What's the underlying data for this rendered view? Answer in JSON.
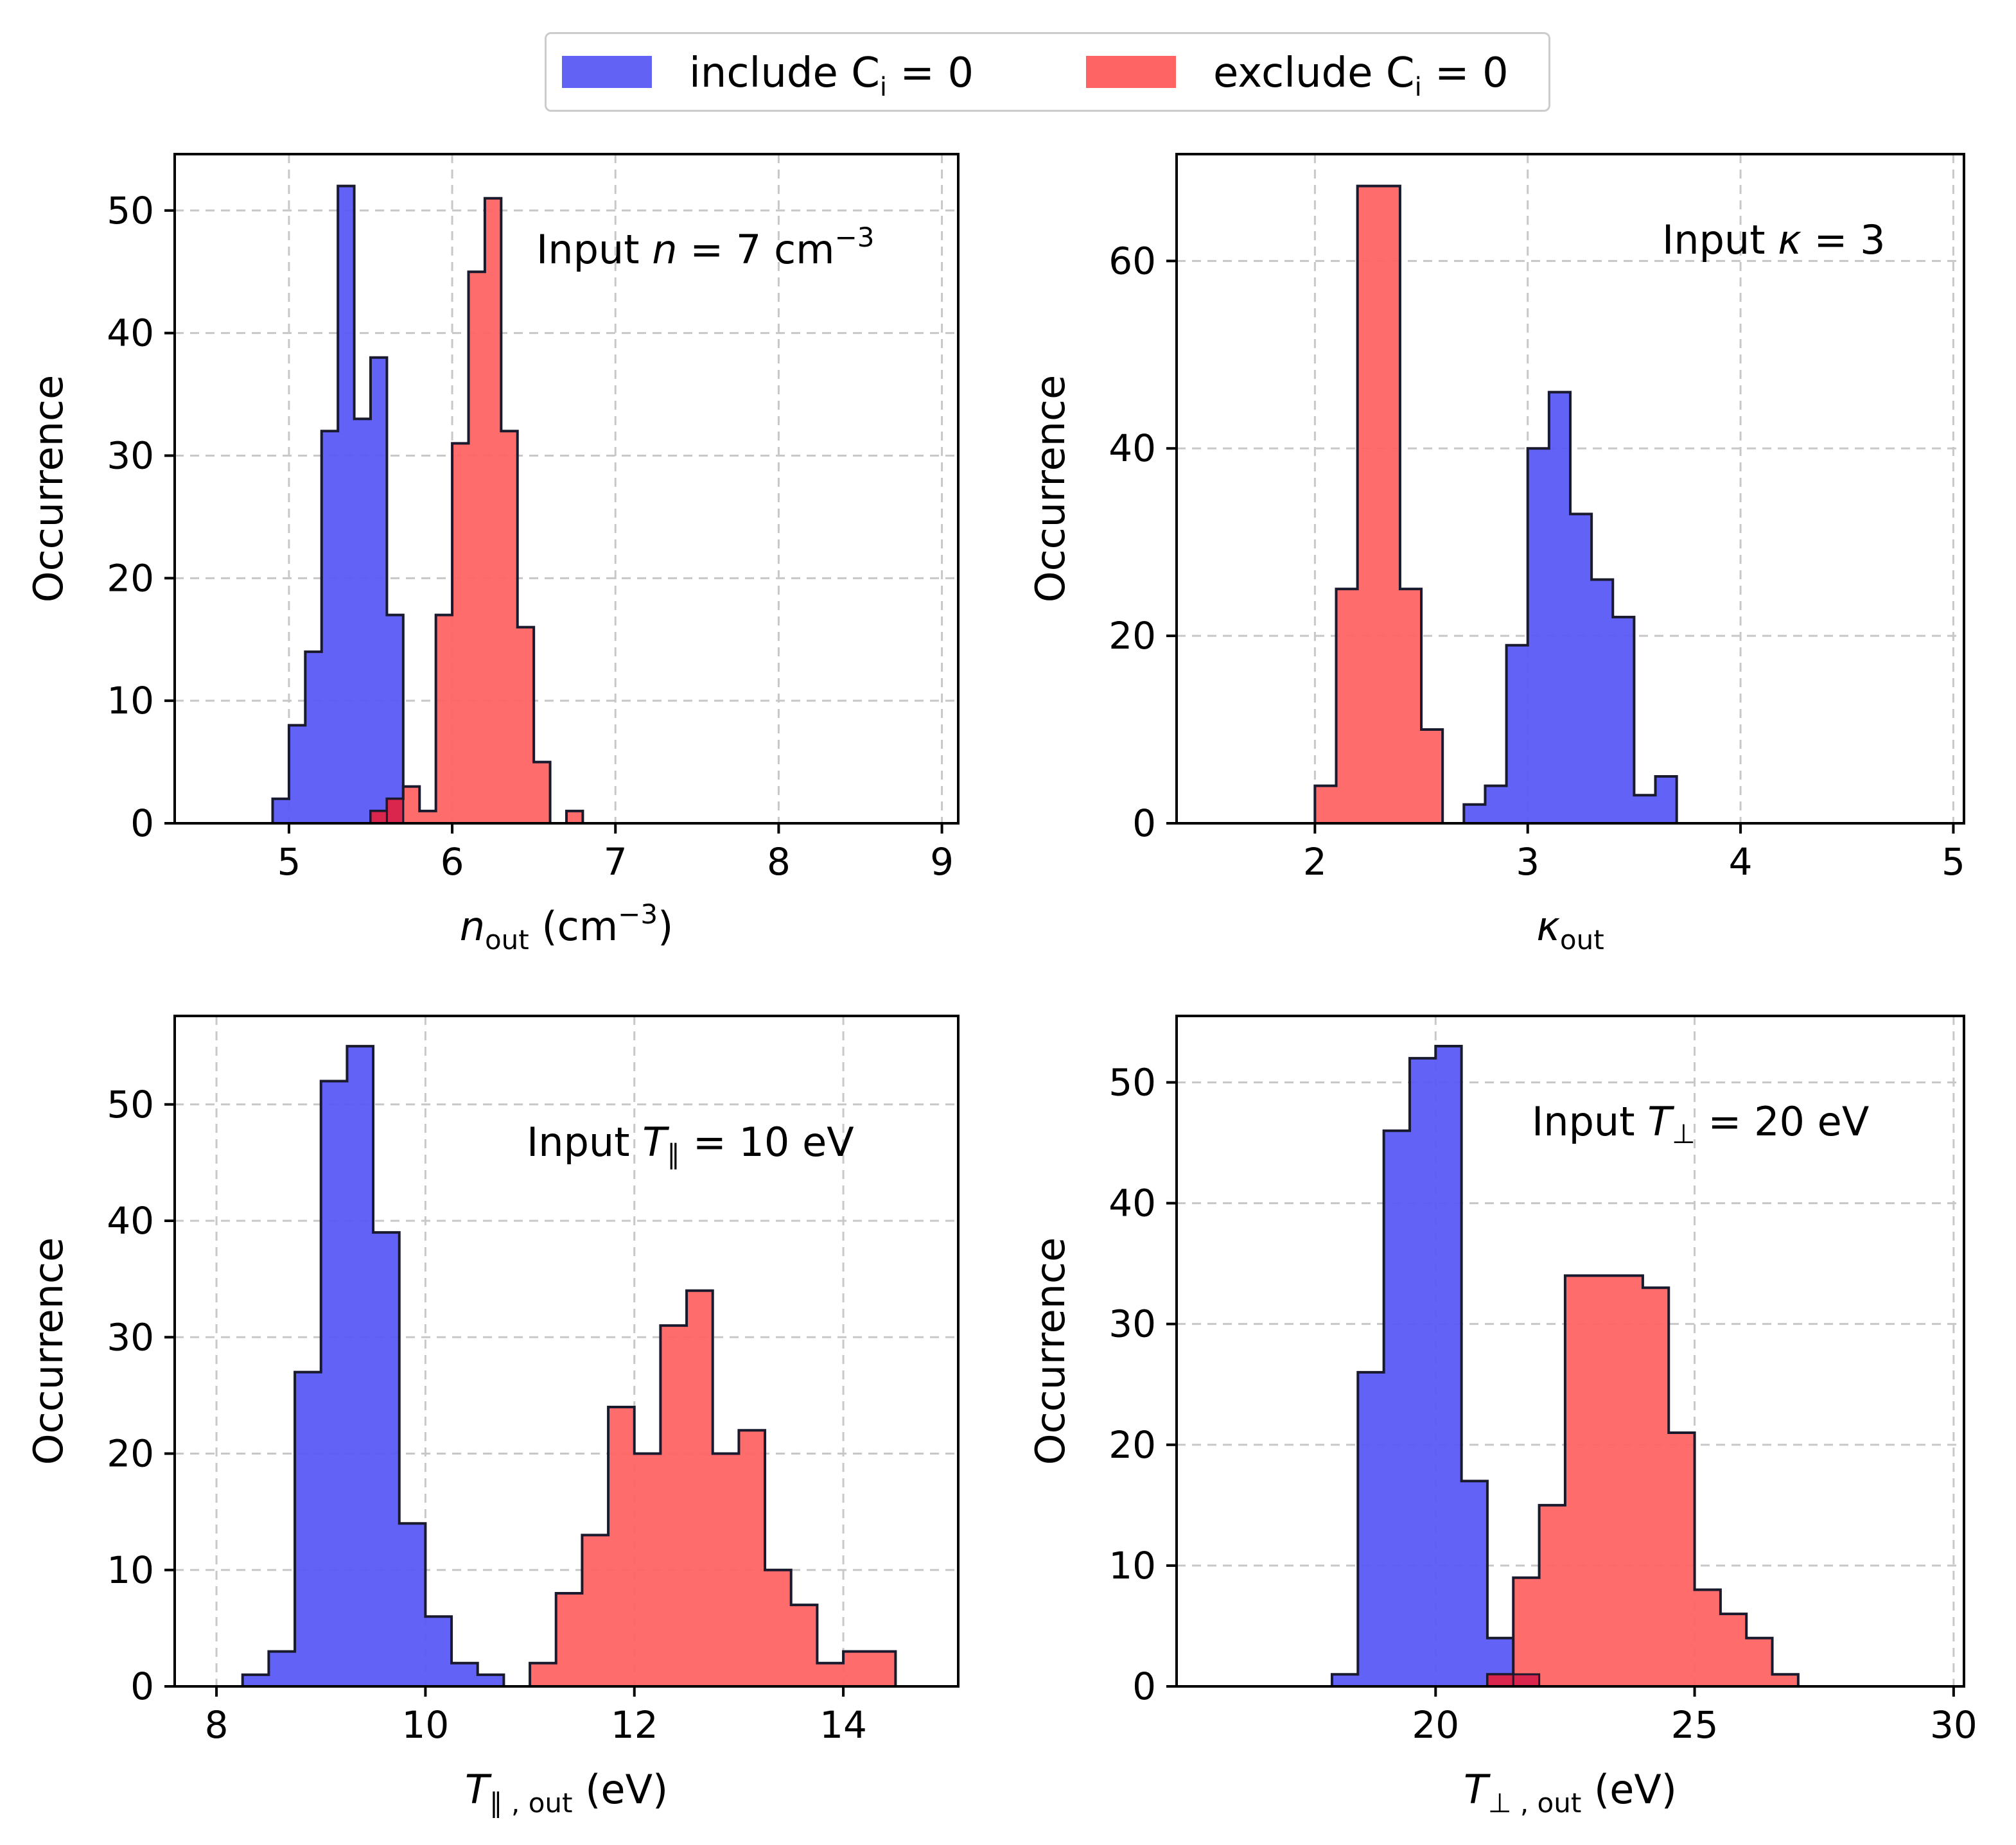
{
  "legend": {
    "include_label": "include C",
    "include_sub": "i",
    "include_tail": " = 0",
    "exclude_label": "exclude C",
    "exclude_sub": "i",
    "exclude_tail": " = 0",
    "include_color": "#5a5af6",
    "exclude_color": "#ff6464",
    "overlap_color": "#d61f4a"
  },
  "chart_data": [
    {
      "type": "histogram",
      "ylabel": "Occurrence",
      "xlabel": {
        "base": "n",
        "sub": "out",
        "unit": " (cm",
        "sup": "−3",
        "close": ")"
      },
      "annotation": {
        "prefix": "Input ",
        "var": "n",
        "mid": " = 7 cm",
        "sup": "−3",
        "suffix": ""
      },
      "xlim": [
        4.3,
        9.1
      ],
      "ylim": [
        0,
        54.6
      ],
      "xticks": [
        5,
        6,
        7,
        8,
        9
      ],
      "yticks": [
        0,
        10,
        20,
        30,
        40,
        50
      ],
      "series": [
        {
          "name": "include C_i = 0",
          "bin_edges": [
            4.9,
            5.0,
            5.1,
            5.2,
            5.3,
            5.4,
            5.5,
            5.6,
            5.7
          ],
          "counts": [
            2,
            8,
            14,
            32,
            52,
            33,
            38,
            17
          ]
        },
        {
          "name": "exclude C_i = 0",
          "bin_edges": [
            5.5,
            5.6,
            5.7,
            5.8,
            5.9,
            6.0,
            6.1,
            6.2,
            6.3,
            6.4,
            6.5,
            6.6,
            6.7,
            6.8
          ],
          "counts": [
            1,
            2,
            3,
            1,
            17,
            31,
            45,
            51,
            32,
            16,
            5,
            0,
            1
          ]
        }
      ]
    },
    {
      "type": "histogram",
      "ylabel": "Occurrence",
      "xlabel": {
        "base": "κ",
        "sub": "out",
        "unit": "",
        "sup": "",
        "close": ""
      },
      "annotation": {
        "prefix": "Input ",
        "var": "κ",
        "mid": " = 3",
        "sup": "",
        "suffix": ""
      },
      "xlim": [
        1.35,
        5.05
      ],
      "ylim": [
        0,
        71.4
      ],
      "xticks": [
        2,
        3,
        4,
        5
      ],
      "yticks": [
        0,
        20,
        40,
        60
      ],
      "series": [
        {
          "name": "include C_i = 0",
          "bin_edges": [
            2.7,
            2.8,
            2.9,
            3.0,
            3.1,
            3.2,
            3.3,
            3.4,
            3.5,
            3.6,
            3.7
          ],
          "counts": [
            2,
            4,
            19,
            40,
            46,
            33,
            26,
            22,
            3,
            5
          ]
        },
        {
          "name": "exclude C_i = 0",
          "bin_edges": [
            2.0,
            2.1,
            2.2,
            2.3,
            2.4,
            2.5,
            2.6
          ],
          "counts": [
            4,
            25,
            68,
            68,
            25,
            10
          ]
        }
      ]
    },
    {
      "type": "histogram",
      "ylabel": "Occurrence",
      "xlabel": {
        "base": "T",
        "sub": "∥ , out",
        "unit": " (eV)",
        "sup": "",
        "close": ""
      },
      "annotation": {
        "prefix": "Input ",
        "var": "T",
        "varsub": "∥",
        "mid": " = 10 eV",
        "sup": "",
        "suffix": ""
      },
      "xlim": [
        7.6,
        15.1
      ],
      "ylim": [
        0,
        57.6
      ],
      "xticks": [
        8,
        10,
        12,
        14
      ],
      "yticks": [
        0,
        10,
        20,
        30,
        40,
        50
      ],
      "series": [
        {
          "name": "include C_i = 0",
          "bin_edges": [
            8.25,
            8.5,
            8.75,
            9.0,
            9.25,
            9.5,
            9.75,
            10.0,
            10.25,
            10.5,
            10.75
          ],
          "counts": [
            1,
            3,
            27,
            52,
            55,
            39,
            14,
            6,
            2,
            1
          ]
        },
        {
          "name": "exclude C_i = 0",
          "bin_edges": [
            11.0,
            11.25,
            11.5,
            11.75,
            12.0,
            12.25,
            12.5,
            12.75,
            13.0,
            13.25,
            13.5,
            13.75,
            14.0,
            14.25,
            14.5
          ],
          "counts": [
            2,
            8,
            13,
            24,
            20,
            31,
            34,
            20,
            22,
            10,
            7,
            2,
            3,
            3
          ]
        }
      ]
    },
    {
      "type": "histogram",
      "ylabel": "Occurrence",
      "xlabel": {
        "base": "T",
        "sub": "⊥ , out",
        "unit": " (eV)",
        "sup": "",
        "close": ""
      },
      "annotation": {
        "prefix": "Input ",
        "var": "T",
        "varsub": "⊥",
        "mid": " = 20 eV",
        "sup": "",
        "suffix": ""
      },
      "xlim": [
        15.0,
        30.2
      ],
      "ylim": [
        0,
        55.5
      ],
      "xticks": [
        20,
        25,
        30
      ],
      "yticks": [
        0,
        10,
        20,
        30,
        40,
        50
      ],
      "series": [
        {
          "name": "include C_i = 0",
          "bin_edges": [
            18.0,
            18.5,
            19.0,
            19.5,
            20.0,
            20.5,
            21.0,
            21.5,
            22.0
          ],
          "counts": [
            1,
            26,
            46,
            52,
            53,
            17,
            4,
            1
          ]
        },
        {
          "name": "exclude C_i = 0",
          "bin_edges": [
            21.0,
            21.5,
            22.0,
            22.5,
            23.0,
            23.5,
            24.0,
            24.5,
            25.0,
            25.5,
            26.0,
            26.5,
            27.0
          ],
          "counts": [
            1,
            9,
            15,
            34,
            34,
            34,
            33,
            21,
            8,
            6,
            4,
            1
          ]
        }
      ]
    }
  ]
}
